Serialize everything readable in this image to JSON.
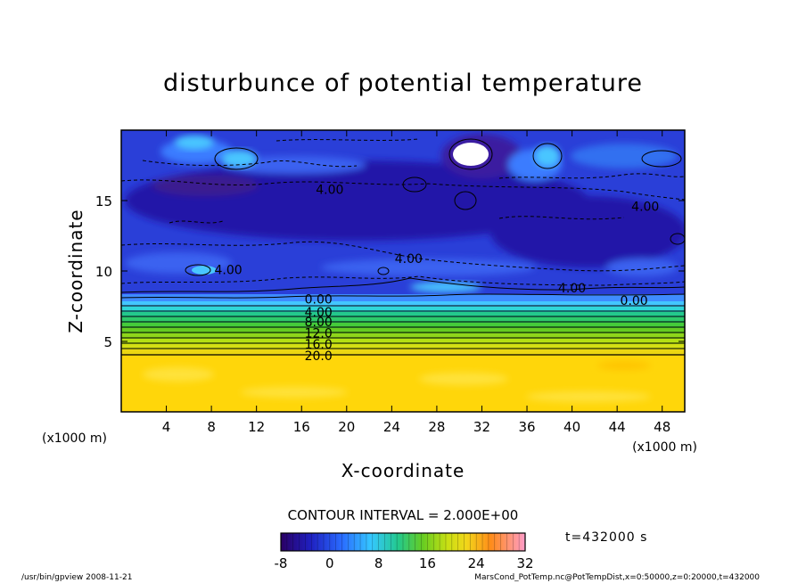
{
  "chart_data": {
    "type": "heatmap",
    "title": "disturbunce of potential temperature",
    "xlabel": "X-coordinate",
    "ylabel": "Z-coordinate",
    "x_unit_left": "(x1000 m)",
    "x_unit_right": "(x1000 m)",
    "xlim": [
      0,
      50
    ],
    "ylim": [
      0,
      20
    ],
    "x_ticks": [
      4,
      8,
      12,
      16,
      20,
      24,
      28,
      32,
      36,
      40,
      44,
      48
    ],
    "y_ticks": [
      5,
      10,
      15
    ],
    "contour_labels": [
      {
        "text": "4.00",
        "x": 18.5,
        "z": 15.8
      },
      {
        "text": "4.00",
        "x": 46.5,
        "z": 14.6
      },
      {
        "text": "4.00",
        "x": 25.5,
        "z": 10.9
      },
      {
        "text": "4.00",
        "x": 9.5,
        "z": 10.1
      },
      {
        "text": "4.00",
        "x": 40.0,
        "z": 8.8
      },
      {
        "text": "0.00",
        "x": 17.5,
        "z": 8.0
      },
      {
        "text": "0.00",
        "x": 45.5,
        "z": 7.9
      },
      {
        "text": "4.00",
        "x": 17.5,
        "z": 7.1
      },
      {
        "text": "8.00",
        "x": 17.5,
        "z": 6.4
      },
      {
        "text": "12.0",
        "x": 17.5,
        "z": 5.6
      },
      {
        "text": "16.0",
        "x": 17.5,
        "z": 4.8
      },
      {
        "text": "20.0",
        "x": 17.5,
        "z": 4.0
      }
    ],
    "contour_interval_text": "CONTOUR INTERVAL = 2.000E+00",
    "time_text": "t=432000 s",
    "colorbar": {
      "min": -8,
      "max": 32,
      "ticks": [
        "-8",
        "0",
        "8",
        "16",
        "24",
        "32"
      ]
    }
  },
  "footer": {
    "left": "/usr/bin/gpview  2008-11-21",
    "right": "MarsCond_PotTemp.nc@PotTempDist,x=0:50000,z=0:20000,t=432000"
  }
}
